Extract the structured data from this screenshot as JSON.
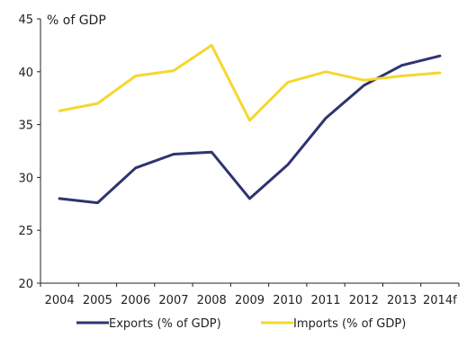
{
  "chart_data": {
    "type": "line",
    "unit_label": "% of GDP",
    "categories": [
      "2004",
      "2005",
      "2006",
      "2007",
      "2008",
      "2009",
      "2010",
      "2011",
      "2012",
      "2013",
      "2014f"
    ],
    "yticks": [
      "20",
      "25",
      "30",
      "35",
      "40",
      "45"
    ],
    "ylim": [
      20,
      45
    ],
    "grid": false,
    "legend_position": "bottom",
    "series": [
      {
        "name": "Exports (% of GDP)",
        "color": "#2e3470",
        "values": [
          28.0,
          27.6,
          30.9,
          32.2,
          32.4,
          28.0,
          31.2,
          35.6,
          38.7,
          40.6,
          41.5
        ]
      },
      {
        "name": "Imports (% of GDP)",
        "color": "#f5d730",
        "values": [
          36.3,
          37.0,
          39.6,
          40.1,
          42.5,
          35.4,
          39.0,
          40.0,
          39.2,
          39.6,
          39.9
        ]
      }
    ]
  }
}
